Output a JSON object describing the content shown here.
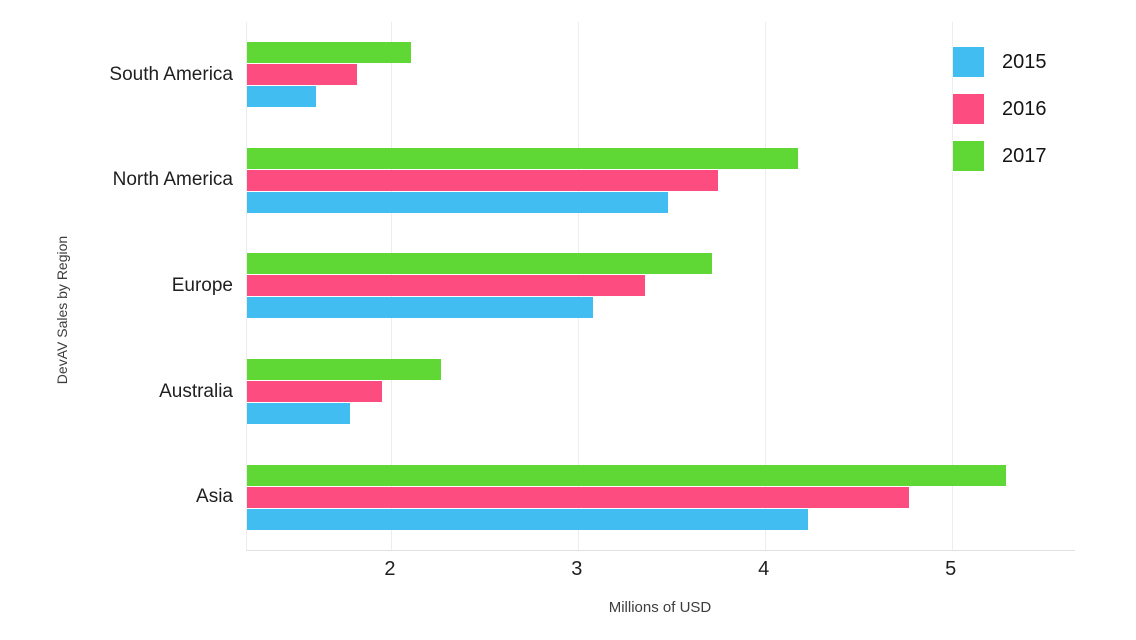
{
  "chart_data": {
    "type": "bar",
    "orientation": "horizontal",
    "ylabel": "DevAV Sales by Region",
    "xlabel": "Millions of USD",
    "categories": [
      "South America",
      "North America",
      "Europe",
      "Australia",
      "Asia"
    ],
    "series": [
      {
        "name": "2015",
        "color": "#41bdf1",
        "values": [
          1.6,
          3.48,
          3.08,
          1.78,
          4.23
        ]
      },
      {
        "name": "2016",
        "color": "#fc4c80",
        "values": [
          1.82,
          3.75,
          3.36,
          1.95,
          4.77
        ]
      },
      {
        "name": "2017",
        "color": "#5fd836",
        "values": [
          2.11,
          4.18,
          3.72,
          2.27,
          5.29
        ]
      }
    ],
    "bar_order_top_to_bottom": [
      "2017",
      "2016",
      "2015"
    ],
    "xlim": [
      1.23,
      5.66
    ],
    "xticks": [
      2,
      3,
      4,
      5
    ],
    "grid": "vertical-light-gray",
    "legend_position": "top-right",
    "colors": {
      "gridline": "#ededed",
      "axis_line": "#e0e0e0",
      "label_text": "#1f1f1f",
      "axis_title_text": "#3d3d3d"
    }
  }
}
